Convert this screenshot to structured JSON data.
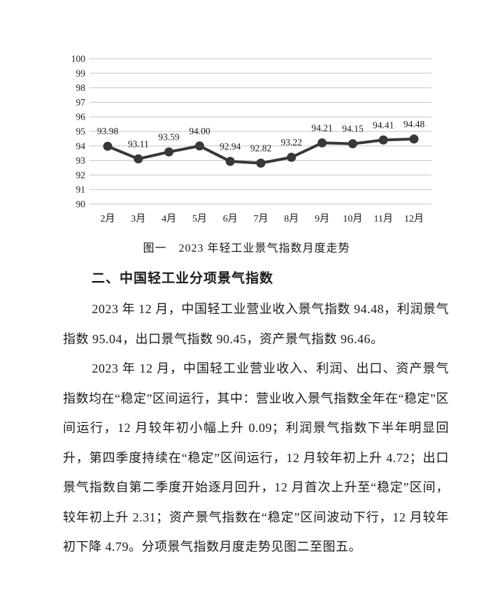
{
  "chart_data": {
    "type": "line",
    "title": "图一 2023年轻工业景气指数月度走势",
    "categories": [
      "2月",
      "3月",
      "4月",
      "5月",
      "6月",
      "7月",
      "8月",
      "9月",
      "10月",
      "11月",
      "12月"
    ],
    "values": [
      93.98,
      93.11,
      93.59,
      94.0,
      92.94,
      92.82,
      93.22,
      94.21,
      94.15,
      94.41,
      94.48
    ],
    "xlabel": "",
    "ylabel": "",
    "ylim": [
      90,
      100
    ],
    "ytick_step": 1,
    "grid": true,
    "legend": false,
    "marker": "circle",
    "line_color": "#383838",
    "grid_color": "#c5c5c5",
    "text_color": "#1b1b1b"
  },
  "document": {
    "figure_caption": "图一　2023 年轻工业景气指数月度走势",
    "section_heading": "二、中国轻工业分项景气指数",
    "paragraphs": [
      "2023 年 12 月，中国轻工业营业收入景气指数 94.48，利润景气指数 95.04，出口景气指数 90.45，资产景气指数 96.46。",
      "2023 年 12 月，中国轻工业营业收入、利润、出口、资产景气指数均在“稳定”区间运行，其中：营业收入景气指数全年在“稳定”区间运行，12 月较年初小幅上升 0.09；利润景气指数下半年明显回升，第四季度持续在“稳定”区间运行，12 月较年初上升 4.72；出口景气指数自第二季度开始逐月回升，12 月首次上升至“稳定”区间，较年初上升 2.31；资产景气指数在“稳定”区间波动下行，12 月较年初下降 4.79。分项景气指数月度走势见图二至图五。"
    ]
  },
  "colors": {
    "page_background": "#ffffff",
    "body_text": "#1b1b1b"
  }
}
